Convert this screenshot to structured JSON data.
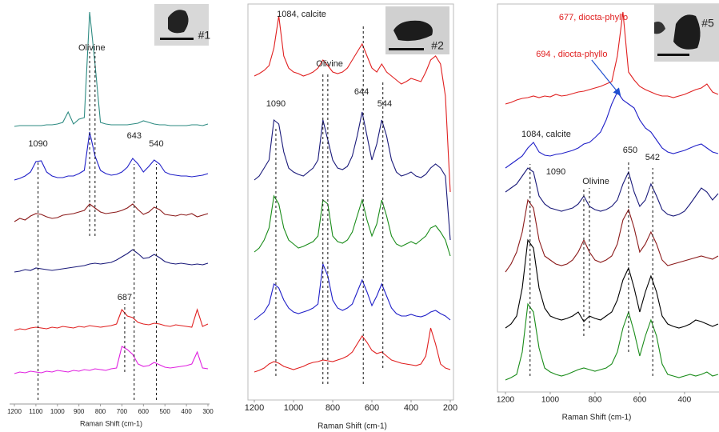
{
  "chart_data": [
    {
      "type": "line",
      "xlabel": "Raman Shift (cm-1)",
      "xlim": [
        1200,
        300
      ],
      "ylim": [
        0,
        500
      ],
      "xticks": [
        1200,
        1100,
        1000,
        900,
        800,
        700,
        600,
        500,
        400,
        300
      ],
      "x": [
        1200,
        1175,
        1150,
        1125,
        1100,
        1075,
        1050,
        1025,
        1000,
        975,
        950,
        925,
        900,
        875,
        850,
        825,
        800,
        775,
        750,
        725,
        700,
        675,
        650,
        625,
        600,
        575,
        550,
        525,
        500,
        475,
        450,
        425,
        400,
        375,
        350,
        325,
        300
      ],
      "series": [
        {
          "color": "#2e8b82",
          "values": [
            347,
            348,
            348,
            348,
            348,
            348,
            349,
            349,
            350,
            352,
            365,
            350,
            356,
            358,
            490,
            425,
            352,
            350,
            349,
            349,
            349,
            349,
            350,
            351,
            354,
            352,
            350,
            349,
            349,
            348,
            348,
            348,
            348,
            349,
            349,
            348,
            350
          ]
        },
        {
          "color": "#2020c8",
          "values": [
            280,
            282,
            285,
            290,
            303,
            304,
            290,
            285,
            283,
            283,
            285,
            285,
            288,
            292,
            340,
            310,
            292,
            288,
            286,
            287,
            290,
            296,
            307,
            300,
            290,
            297,
            305,
            300,
            290,
            287,
            286,
            285,
            285,
            284,
            285,
            286,
            288
          ]
        },
        {
          "color": "#8b1a1a",
          "values": [
            228,
            232,
            230,
            235,
            238,
            237,
            234,
            232,
            233,
            236,
            237,
            238,
            240,
            242,
            250,
            245,
            240,
            238,
            239,
            240,
            242,
            245,
            250,
            243,
            237,
            240,
            246,
            243,
            237,
            236,
            235,
            237,
            236,
            238,
            234,
            236,
            238
          ]
        },
        {
          "color": "#1a1a7a",
          "values": [
            165,
            166,
            168,
            167,
            170,
            169,
            168,
            167,
            168,
            169,
            170,
            171,
            172,
            173,
            175,
            176,
            175,
            176,
            177,
            180,
            184,
            188,
            193,
            188,
            182,
            183,
            187,
            183,
            178,
            176,
            175,
            176,
            175,
            174,
            175,
            174,
            176
          ]
        },
        {
          "color": "#e02020",
          "values": [
            92,
            94,
            93,
            95,
            96,
            95,
            94,
            96,
            95,
            97,
            96,
            95,
            97,
            96,
            98,
            97,
            96,
            97,
            98,
            100,
            118,
            110,
            108,
            102,
            100,
            99,
            101,
            100,
            98,
            97,
            99,
            98,
            97,
            96,
            118,
            97,
            100
          ]
        },
        {
          "color": "#e020e0",
          "values": [
            38,
            40,
            39,
            41,
            40,
            39,
            41,
            40,
            42,
            41,
            40,
            42,
            41,
            43,
            42,
            44,
            43,
            42,
            44,
            45,
            72,
            68,
            62,
            50,
            47,
            48,
            52,
            49,
            46,
            45,
            46,
            47,
            48,
            50,
            65,
            45,
            44
          ]
        }
      ],
      "ref_lines": [
        {
          "x": 1090,
          "y": [
            5,
            305
          ]
        },
        {
          "x": 850,
          "y": [
            210,
            440
          ]
        },
        {
          "x": 825,
          "y": [
            210,
            440
          ]
        },
        {
          "x": 643,
          "y": [
            5,
            300
          ]
        },
        {
          "x": 540,
          "y": [
            5,
            300
          ]
        },
        {
          "x": 687,
          "y": [
            40,
            125
          ]
        }
      ],
      "annotations": [
        {
          "text": "Olivine",
          "x": 840,
          "y": 445
        },
        {
          "text": "1090",
          "x": 1090,
          "y": 325
        },
        {
          "text": "643",
          "x": 643,
          "y": 335
        },
        {
          "text": "540",
          "x": 540,
          "y": 325
        },
        {
          "text": "687",
          "x": 687,
          "y": 133
        },
        {
          "text": "#1",
          "x": 317,
          "y": 460
        }
      ]
    },
    {
      "type": "line",
      "xlabel": "Raman Shift (cm-1)",
      "xlim": [
        1200,
        200
      ],
      "ylim": [
        0,
        495
      ],
      "xticks": [
        1200,
        1000,
        800,
        600,
        400,
        200
      ],
      "x": [
        1200,
        1175,
        1150,
        1125,
        1100,
        1075,
        1050,
        1025,
        1000,
        975,
        950,
        925,
        900,
        875,
        850,
        825,
        800,
        775,
        750,
        725,
        700,
        675,
        650,
        625,
        600,
        575,
        550,
        525,
        500,
        475,
        450,
        425,
        400,
        375,
        350,
        325,
        300,
        275,
        250,
        225,
        200
      ],
      "series": [
        {
          "color": "#e02020",
          "values": [
            405,
            408,
            412,
            418,
            440,
            480,
            430,
            415,
            410,
            408,
            405,
            407,
            410,
            415,
            425,
            418,
            410,
            408,
            410,
            415,
            425,
            435,
            445,
            430,
            415,
            410,
            420,
            410,
            405,
            400,
            395,
            398,
            402,
            400,
            398,
            410,
            425,
            430,
            420,
            380,
            260
          ]
        },
        {
          "color": "#1a1a7a",
          "values": [
            275,
            280,
            290,
            300,
            350,
            345,
            310,
            290,
            285,
            282,
            280,
            285,
            290,
            300,
            350,
            325,
            300,
            290,
            288,
            292,
            305,
            330,
            360,
            330,
            300,
            320,
            350,
            330,
            300,
            285,
            280,
            282,
            285,
            280,
            278,
            282,
            290,
            295,
            290,
            280,
            200
          ]
        },
        {
          "color": "#1a8c1a",
          "values": [
            185,
            190,
            200,
            215,
            255,
            245,
            215,
            200,
            195,
            190,
            192,
            195,
            198,
            205,
            250,
            245,
            205,
            198,
            196,
            200,
            210,
            230,
            250,
            225,
            205,
            220,
            250,
            230,
            205,
            195,
            192,
            195,
            198,
            195,
            200,
            205,
            215,
            218,
            210,
            200,
            180
          ]
        },
        {
          "color": "#2020c8",
          "values": [
            100,
            105,
            110,
            120,
            145,
            140,
            125,
            115,
            110,
            108,
            110,
            112,
            115,
            120,
            170,
            155,
            125,
            115,
            112,
            115,
            120,
            135,
            150,
            135,
            118,
            130,
            145,
            130,
            115,
            108,
            105,
            105,
            107,
            105,
            104,
            106,
            110,
            112,
            108,
            105,
            100
          ]
        },
        {
          "color": "#e02020",
          "values": [
            35,
            37,
            40,
            45,
            48,
            46,
            42,
            40,
            38,
            40,
            42,
            45,
            47,
            48,
            50,
            49,
            48,
            50,
            52,
            55,
            60,
            70,
            80,
            72,
            62,
            58,
            60,
            55,
            50,
            48,
            46,
            45,
            44,
            43,
            45,
            55,
            90,
            70,
            45,
            40,
            38
          ]
        }
      ],
      "ref_lines": [
        {
          "x": 1090,
          "y": [
            30,
            340
          ]
        },
        {
          "x": 850,
          "y": [
            20,
            410
          ]
        },
        {
          "x": 825,
          "y": [
            20,
            410
          ]
        },
        {
          "x": 644,
          "y": [
            20,
            470
          ]
        },
        {
          "x": 544,
          "y": [
            40,
            400
          ]
        }
      ],
      "annotations": [
        {
          "text": "1084, calcite",
          "x": 959,
          "y": 482
        },
        {
          "text": "1090",
          "x": 1090,
          "y": 370
        },
        {
          "text": "Olivine",
          "x": 816,
          "y": 420
        },
        {
          "text": "644",
          "x": 653,
          "y": 385
        },
        {
          "text": "544",
          "x": 535,
          "y": 370
        },
        {
          "text": "#2",
          "x": 265,
          "y": 442
        }
      ]
    },
    {
      "type": "line",
      "xlabel": "Raman Shift (cm-1)",
      "xlim": [
        1200,
        246
      ],
      "ylim": [
        0,
        485
      ],
      "xticks": [
        1200,
        1000,
        800,
        600,
        400
      ],
      "x": [
        1200,
        1175,
        1150,
        1125,
        1100,
        1075,
        1050,
        1025,
        1000,
        975,
        950,
        925,
        900,
        875,
        850,
        825,
        800,
        775,
        750,
        725,
        700,
        675,
        650,
        625,
        600,
        575,
        550,
        525,
        500,
        475,
        450,
        425,
        400,
        375,
        350,
        325,
        300,
        275,
        250
      ],
      "series": [
        {
          "color": "#e02020",
          "values": [
            360,
            362,
            365,
            367,
            368,
            370,
            368,
            370,
            369,
            372,
            370,
            371,
            373,
            375,
            376,
            378,
            380,
            382,
            385,
            388,
            420,
            475,
            400,
            390,
            382,
            378,
            375,
            372,
            370,
            370,
            368,
            370,
            372,
            375,
            378,
            380,
            385,
            375,
            372
          ]
        },
        {
          "color": "#2020c8",
          "values": [
            280,
            285,
            290,
            295,
            305,
            312,
            300,
            296,
            295,
            297,
            298,
            300,
            302,
            305,
            310,
            312,
            318,
            325,
            340,
            360,
            375,
            365,
            360,
            355,
            340,
            330,
            325,
            315,
            305,
            300,
            298,
            300,
            302,
            305,
            308,
            310,
            305,
            300,
            298
          ]
        },
        {
          "color": "#1a1a7a",
          "values": [
            250,
            255,
            260,
            270,
            280,
            275,
            245,
            235,
            230,
            228,
            226,
            228,
            230,
            235,
            245,
            232,
            228,
            226,
            228,
            232,
            240,
            260,
            275,
            250,
            232,
            240,
            260,
            245,
            228,
            222,
            220,
            222,
            226,
            235,
            245,
            255,
            250,
            240,
            248
          ]
        },
        {
          "color": "#8b1a1a",
          "values": [
            150,
            160,
            175,
            200,
            240,
            230,
            190,
            170,
            165,
            160,
            158,
            160,
            165,
            175,
            190,
            175,
            165,
            162,
            165,
            170,
            185,
            215,
            228,
            205,
            175,
            185,
            200,
            185,
            165,
            158,
            160,
            162,
            164,
            166,
            168,
            170,
            168,
            166,
            170
          ]
        },
        {
          "color": "#000000",
          "values": [
            80,
            85,
            95,
            130,
            190,
            180,
            130,
            105,
            95,
            92,
            90,
            92,
            95,
            100,
            88,
            95,
            92,
            90,
            95,
            100,
            115,
            140,
            155,
            130,
            100,
            125,
            145,
            125,
            95,
            85,
            82,
            80,
            82,
            85,
            90,
            88,
            85,
            82,
            85
          ]
        },
        {
          "color": "#1a8c1a",
          "values": [
            15,
            18,
            22,
            50,
            110,
            100,
            55,
            30,
            25,
            22,
            20,
            22,
            25,
            28,
            30,
            28,
            26,
            28,
            30,
            35,
            50,
            80,
            100,
            75,
            45,
            70,
            90,
            70,
            35,
            22,
            20,
            18,
            20,
            22,
            20,
            22,
            25,
            20,
            22
          ]
        }
      ],
      "ref_lines": [
        {
          "x": 1090,
          "y": [
            20,
            285
          ]
        },
        {
          "x": 850,
          "y": [
            70,
            255
          ]
        },
        {
          "x": 825,
          "y": [
            80,
            255
          ]
        },
        {
          "x": 650,
          "y": [
            50,
            290
          ]
        },
        {
          "x": 542,
          "y": [
            20,
            280
          ]
        }
      ],
      "annotations": [
        {
          "text": "677, diocta-phyllo",
          "x": 807,
          "y": 468,
          "color": "#e02020"
        },
        {
          "text": "694 , diocta-phyllo",
          "x": 904,
          "y": 422,
          "color": "#e02020",
          "arrow_to": [
            690,
            372
          ]
        },
        {
          "text": "1084, calcite",
          "x": 1018,
          "y": 322
        },
        {
          "text": "1090",
          "x": 975,
          "y": 275
        },
        {
          "text": "Olivine",
          "x": 796,
          "y": 263
        },
        {
          "text": "650",
          "x": 643,
          "y": 302
        },
        {
          "text": "542",
          "x": 543,
          "y": 293
        },
        {
          "text": "#5",
          "x": 296,
          "y": 460
        }
      ]
    }
  ]
}
